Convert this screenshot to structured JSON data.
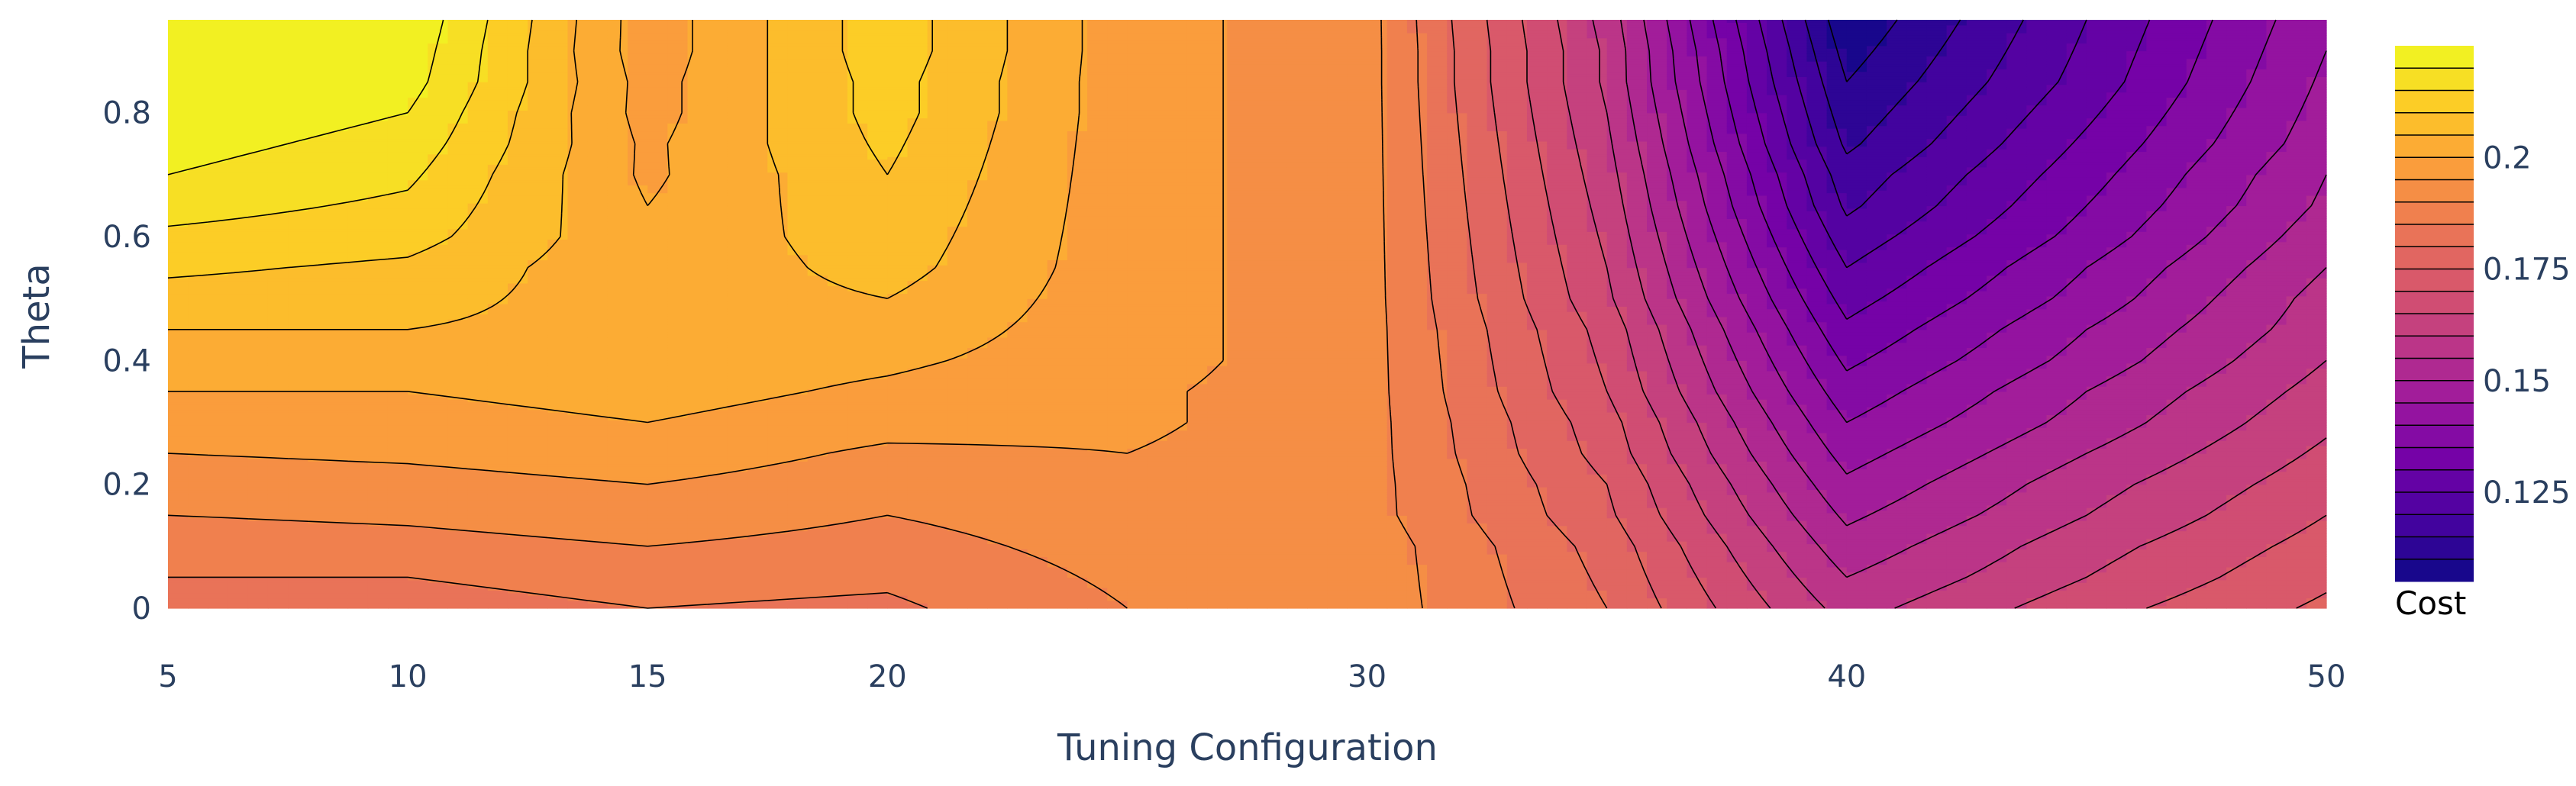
{
  "chart_data": {
    "type": "contour",
    "x_categories": [
      "5",
      "10",
      "15",
      "20",
      "25",
      "30",
      "35",
      "40",
      "45",
      "50"
    ],
    "x_tick_labels": [
      "5",
      "10",
      "15",
      "20",
      "30",
      "40",
      "50"
    ],
    "y": [
      0,
      0.95
    ],
    "y_tick_labels": [
      "0",
      "0.2",
      "0.4",
      "0.6",
      "0.8"
    ],
    "xlabel": "Tuning Configuration",
    "ylabel": "Theta",
    "colorbar": {
      "title": "Cost",
      "range": [
        0.105,
        0.225
      ],
      "tick_labels": [
        "0.125",
        "0.15",
        "0.175",
        "0.2"
      ],
      "level_step": 0.005,
      "colorscale": [
        "#0d0887",
        "#46039f",
        "#7201a8",
        "#9c179e",
        "#bd3786",
        "#d8576b",
        "#ed7953",
        "#fb9f3a",
        "#fdca26",
        "#f0f921"
      ]
    },
    "z": [
      [
        0.182,
        0.185,
        0.187,
        0.19,
        0.192,
        0.195,
        0.197,
        0.2,
        0.203,
        0.205,
        0.208,
        0.211,
        0.214,
        0.217,
        0.22,
        0.222,
        0.224,
        0.226,
        0.228,
        0.229
      ],
      [
        0.183,
        0.185,
        0.188,
        0.191,
        0.193,
        0.196,
        0.198,
        0.2,
        0.202,
        0.205,
        0.207,
        0.209,
        0.212,
        0.214,
        0.216,
        0.218,
        0.22,
        0.222,
        0.223,
        0.224
      ],
      [
        0.185,
        0.187,
        0.19,
        0.193,
        0.195,
        0.198,
        0.2,
        0.202,
        0.203,
        0.203,
        0.202,
        0.201,
        0.201,
        0.2,
        0.199,
        0.199,
        0.198,
        0.198,
        0.197,
        0.197
      ],
      [
        0.184,
        0.186,
        0.188,
        0.19,
        0.192,
        0.194,
        0.197,
        0.199,
        0.201,
        0.203,
        0.205,
        0.207,
        0.208,
        0.209,
        0.21,
        0.211,
        0.212,
        0.212,
        0.213,
        0.213
      ],
      [
        0.19,
        0.191,
        0.192,
        0.193,
        0.194,
        0.195,
        0.196,
        0.196,
        0.197,
        0.197,
        0.197,
        0.197,
        0.197,
        0.197,
        0.197,
        0.197,
        0.197,
        0.197,
        0.197,
        0.197
      ],
      [
        0.193,
        0.193,
        0.193,
        0.192,
        0.192,
        0.192,
        0.192,
        0.192,
        0.192,
        0.192,
        0.192,
        0.192,
        0.192,
        0.192,
        0.192,
        0.192,
        0.192,
        0.192,
        0.192,
        0.192
      ],
      [
        0.18,
        0.179,
        0.178,
        0.176,
        0.175,
        0.173,
        0.172,
        0.17,
        0.169,
        0.168,
        0.166,
        0.165,
        0.164,
        0.163,
        0.162,
        0.161,
        0.16,
        0.159,
        0.159,
        0.158
      ],
      [
        0.158,
        0.155,
        0.152,
        0.149,
        0.146,
        0.143,
        0.14,
        0.137,
        0.134,
        0.131,
        0.128,
        0.125,
        0.122,
        0.119,
        0.117,
        0.114,
        0.112,
        0.11,
        0.108,
        0.106
      ],
      [
        0.168,
        0.165,
        0.163,
        0.16,
        0.158,
        0.155,
        0.152,
        0.15,
        0.147,
        0.145,
        0.142,
        0.14,
        0.137,
        0.135,
        0.133,
        0.131,
        0.129,
        0.127,
        0.126,
        0.125
      ],
      [
        0.176,
        0.174,
        0.172,
        0.17,
        0.168,
        0.166,
        0.164,
        0.162,
        0.16,
        0.158,
        0.157,
        0.155,
        0.153,
        0.151,
        0.15,
        0.148,
        0.147,
        0.146,
        0.145,
        0.144
      ]
    ]
  }
}
